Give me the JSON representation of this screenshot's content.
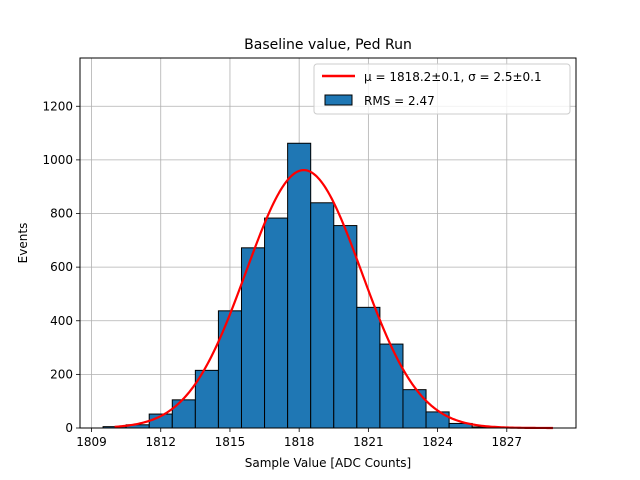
{
  "chart_data": {
    "type": "bar",
    "title": "Baseline value, Ped Run",
    "xlabel": "Sample Value [ADC Counts]",
    "ylabel": "Events",
    "xlim": [
      1808.5,
      1830.0
    ],
    "ylim": [
      0,
      1380
    ],
    "xticks": [
      1809,
      1812,
      1815,
      1818,
      1821,
      1824,
      1827
    ],
    "yticks": [
      0,
      200,
      400,
      600,
      800,
      1000,
      1200
    ],
    "grid": true,
    "legend_position": "top-right",
    "histogram": {
      "label": "RMS = 2.47",
      "color": "#1f77b4",
      "edgecolor": "#000000",
      "bins": [
        {
          "x0": 1809.5,
          "x1": 1810.5,
          "count": 5
        },
        {
          "x0": 1810.5,
          "x1": 1811.5,
          "count": 12
        },
        {
          "x0": 1811.5,
          "x1": 1812.5,
          "count": 52
        },
        {
          "x0": 1812.5,
          "x1": 1813.5,
          "count": 105
        },
        {
          "x0": 1813.5,
          "x1": 1814.5,
          "count": 215
        },
        {
          "x0": 1814.5,
          "x1": 1815.5,
          "count": 437
        },
        {
          "x0": 1815.5,
          "x1": 1816.5,
          "count": 672
        },
        {
          "x0": 1816.5,
          "x1": 1817.5,
          "count": 783
        },
        {
          "x0": 1817.5,
          "x1": 1818.5,
          "count": 1062
        },
        {
          "x0": 1818.5,
          "x1": 1819.5,
          "count": 840
        },
        {
          "x0": 1819.5,
          "x1": 1820.5,
          "count": 755
        },
        {
          "x0": 1820.5,
          "x1": 1821.5,
          "count": 450
        },
        {
          "x0": 1821.5,
          "x1": 1822.5,
          "count": 313
        },
        {
          "x0": 1822.5,
          "x1": 1823.5,
          "count": 143
        },
        {
          "x0": 1823.5,
          "x1": 1824.5,
          "count": 60
        },
        {
          "x0": 1824.5,
          "x1": 1825.5,
          "count": 17
        },
        {
          "x0": 1825.5,
          "x1": 1826.5,
          "count": 4
        }
      ]
    },
    "fit": {
      "label": "μ = 1818.2±0.1, σ = 2.5±0.1",
      "color": "#ff0000",
      "mu": 1818.2,
      "sigma": 2.5,
      "amplitude": 962,
      "x_range": [
        1810.0,
        1829.0
      ]
    }
  }
}
